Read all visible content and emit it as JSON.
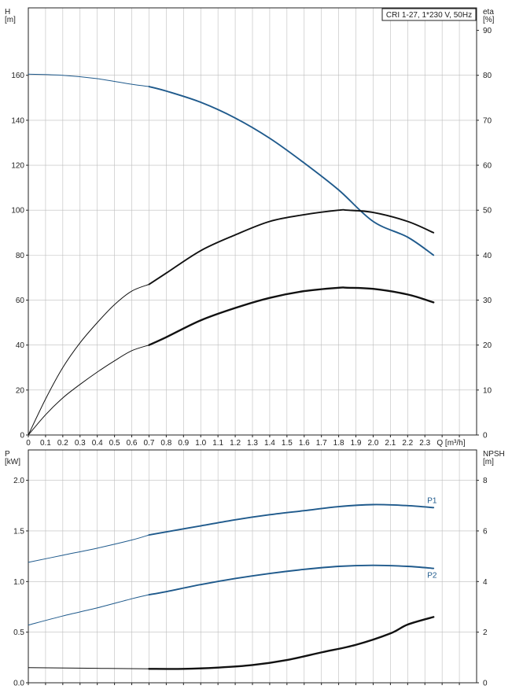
{
  "chart_data": [
    {
      "type": "line",
      "annotation": "CRI 1-27, 1*230 V, 50Hz",
      "x_label": "Q [m³/h]",
      "x_ticks": [
        "0",
        "0.1",
        "0.2",
        "0.3",
        "0.4",
        "0.5",
        "0.6",
        "0.7",
        "0.8",
        "0.9",
        "1.0",
        "1.1",
        "1.2",
        "1.3",
        "1.4",
        "1.5",
        "1.6",
        "1.7",
        "1.8",
        "1.9",
        "2.0",
        "2.1",
        "2.2",
        "2.3"
      ],
      "xlim": [
        0,
        2.6
      ],
      "y_left_label": [
        "H",
        "[m]"
      ],
      "y_left_ticks": [
        "0",
        "20",
        "40",
        "60",
        "80",
        "100",
        "120",
        "140",
        "160"
      ],
      "ylim_left": [
        0,
        190
      ],
      "y_right_label": [
        "eta",
        "[%]"
      ],
      "y_right_ticks": [
        "0",
        "10",
        "20",
        "30",
        "40",
        "50",
        "60",
        "70",
        "80",
        "90"
      ],
      "ylim_right": [
        0,
        95
      ],
      "grid": true,
      "series": [
        {
          "axis": "left",
          "color": "#1f5a8c",
          "x": [
            0,
            0.2,
            0.4,
            0.6,
            0.7,
            0.8,
            1.0,
            1.2,
            1.4,
            1.6,
            1.8,
            2.0,
            2.2,
            2.35
          ],
          "y": [
            160.5,
            160,
            158.5,
            156,
            155,
            153,
            148,
            141,
            132,
            121,
            109,
            95,
            88,
            80
          ]
        },
        {
          "axis": "right",
          "color": "#111111",
          "x": [
            0,
            0.1,
            0.2,
            0.3,
            0.4,
            0.5,
            0.6,
            0.7,
            0.8,
            1.0,
            1.2,
            1.4,
            1.6,
            1.8,
            1.85,
            2.0,
            2.2,
            2.35
          ],
          "y": [
            0,
            8,
            15,
            20.5,
            25,
            29,
            32,
            33.5,
            36,
            41,
            44.5,
            47.5,
            49,
            50,
            50,
            49.5,
            47.5,
            45
          ]
        },
        {
          "axis": "left",
          "color": "#111111",
          "x": [
            0,
            0.1,
            0.2,
            0.3,
            0.4,
            0.5,
            0.6,
            0.7,
            0.8,
            1.0,
            1.2,
            1.4,
            1.6,
            1.8,
            1.85,
            2.0,
            2.2,
            2.35
          ],
          "y": [
            0,
            9,
            16.5,
            22.5,
            28,
            33,
            37.5,
            40,
            43.5,
            51,
            56.5,
            61,
            64,
            65.5,
            65.5,
            65,
            62.5,
            59
          ]
        }
      ]
    },
    {
      "type": "line",
      "xlim": [
        0,
        2.6
      ],
      "y_left_label": [
        "P",
        "[kW]"
      ],
      "y_left_ticks": [
        "0.0",
        "0.5",
        "1.0",
        "1.5",
        "2.0"
      ],
      "ylim_left": [
        0,
        2.3
      ],
      "y_right_label": [
        "NPSH",
        "[m]"
      ],
      "y_right_ticks": [
        "0",
        "2",
        "4",
        "6",
        "8"
      ],
      "ylim_right": [
        0,
        9.2
      ],
      "grid": true,
      "series": [
        {
          "name": "P1",
          "axis": "left",
          "color": "#1f5a8c",
          "x": [
            0,
            0.2,
            0.4,
            0.6,
            0.7,
            0.8,
            1.0,
            1.2,
            1.4,
            1.6,
            1.8,
            2.0,
            2.2,
            2.35
          ],
          "y": [
            1.19,
            1.26,
            1.33,
            1.41,
            1.46,
            1.49,
            1.55,
            1.61,
            1.66,
            1.7,
            1.74,
            1.76,
            1.75,
            1.73
          ]
        },
        {
          "name": "P2",
          "axis": "left",
          "color": "#1f5a8c",
          "x": [
            0,
            0.2,
            0.4,
            0.6,
            0.7,
            0.8,
            1.0,
            1.2,
            1.4,
            1.6,
            1.8,
            2.0,
            2.2,
            2.35
          ],
          "y": [
            0.57,
            0.66,
            0.74,
            0.83,
            0.87,
            0.9,
            0.97,
            1.03,
            1.08,
            1.12,
            1.15,
            1.16,
            1.15,
            1.13
          ]
        },
        {
          "axis": "right",
          "color": "#111111",
          "x": [
            0,
            0.4,
            0.7,
            0.9,
            1.1,
            1.3,
            1.5,
            1.7,
            1.9,
            2.1,
            2.2,
            2.35
          ],
          "y": [
            0.6,
            0.57,
            0.55,
            0.55,
            0.6,
            0.7,
            0.9,
            1.2,
            1.5,
            1.95,
            2.3,
            2.6
          ]
        }
      ]
    }
  ]
}
